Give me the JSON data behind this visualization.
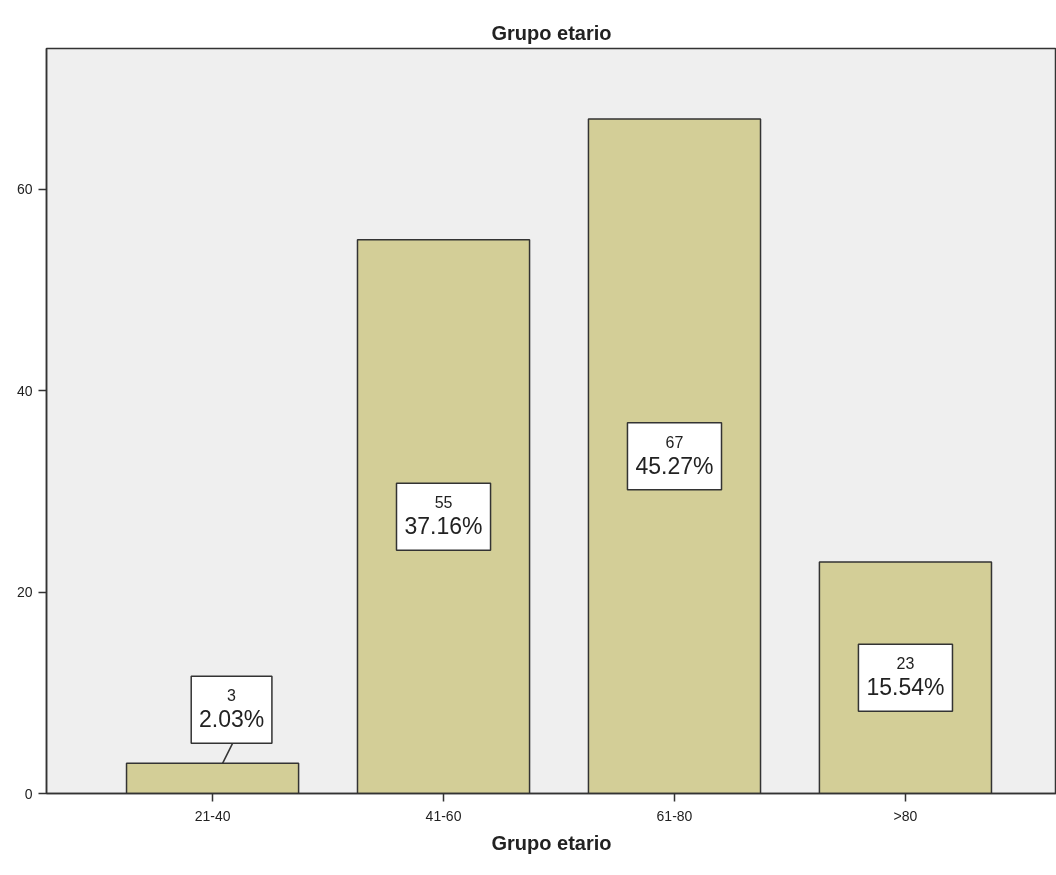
{
  "chart_data": {
    "type": "bar",
    "title": "Grupo etario",
    "xlabel": "Grupo etario",
    "categories": [
      "21-40",
      "41-60",
      "61-80",
      ">80"
    ],
    "values": [
      3,
      55,
      67,
      23
    ],
    "color": "#d3ce97",
    "value_labels": [
      "3\n2.03%",
      "55\n37.16%",
      "67\n45.27%",
      "23\n15.54%"
    ],
    "ylim": [
      0,
      74
    ],
    "yticks": [
      0,
      20,
      40,
      60
    ]
  }
}
